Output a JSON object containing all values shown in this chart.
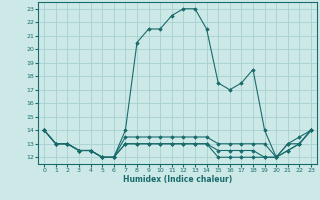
{
  "xlabel": "Humidex (Indice chaleur)",
  "ylabel": "",
  "xlim": [
    -0.5,
    23.5
  ],
  "ylim": [
    11.5,
    23.5
  ],
  "yticks": [
    12,
    13,
    14,
    15,
    16,
    17,
    18,
    19,
    20,
    21,
    22,
    23
  ],
  "xticks": [
    0,
    1,
    2,
    3,
    4,
    5,
    6,
    7,
    8,
    9,
    10,
    11,
    12,
    13,
    14,
    15,
    16,
    17,
    18,
    19,
    20,
    21,
    22,
    23
  ],
  "background_color": "#cce9e8",
  "grid_color": "#aad4d2",
  "line_color": "#1a6b6b",
  "curves": [
    {
      "x": [
        0,
        1,
        2,
        3,
        4,
        5,
        6,
        7,
        8,
        9,
        10,
        11,
        12,
        13,
        14,
        15,
        16,
        17,
        18,
        19,
        20,
        21,
        22,
        23
      ],
      "y": [
        14,
        13,
        13,
        12.5,
        12.5,
        12,
        12,
        14,
        20.5,
        21.5,
        21.5,
        22.5,
        23,
        23,
        21.5,
        17.5,
        17,
        17.5,
        18.5,
        14,
        12,
        13,
        13.5,
        14
      ]
    },
    {
      "x": [
        0,
        1,
        2,
        3,
        4,
        5,
        6,
        7,
        8,
        9,
        10,
        11,
        12,
        13,
        14,
        15,
        16,
        17,
        18,
        19,
        20,
        21,
        22,
        23
      ],
      "y": [
        14,
        13,
        13,
        12.5,
        12.5,
        12,
        12,
        13.5,
        13.5,
        13.5,
        13.5,
        13.5,
        13.5,
        13.5,
        13.5,
        13,
        13,
        13,
        13,
        13,
        12,
        13,
        13,
        14
      ]
    },
    {
      "x": [
        0,
        1,
        2,
        3,
        4,
        5,
        6,
        7,
        8,
        9,
        10,
        11,
        12,
        13,
        14,
        15,
        16,
        17,
        18,
        19,
        20,
        21,
        22,
        23
      ],
      "y": [
        14,
        13,
        13,
        12.5,
        12.5,
        12,
        12,
        13,
        13,
        13,
        13,
        13,
        13,
        13,
        13,
        12.5,
        12.5,
        12.5,
        12.5,
        12,
        12,
        12.5,
        13,
        14
      ]
    },
    {
      "x": [
        0,
        1,
        2,
        3,
        4,
        5,
        6,
        7,
        8,
        9,
        10,
        11,
        12,
        13,
        14,
        15,
        16,
        17,
        18,
        19,
        20,
        21,
        22,
        23
      ],
      "y": [
        14,
        13,
        13,
        12.5,
        12.5,
        12,
        12,
        13,
        13,
        13,
        13,
        13,
        13,
        13,
        13,
        12,
        12,
        12,
        12,
        12,
        12,
        12.5,
        13,
        14
      ]
    }
  ]
}
